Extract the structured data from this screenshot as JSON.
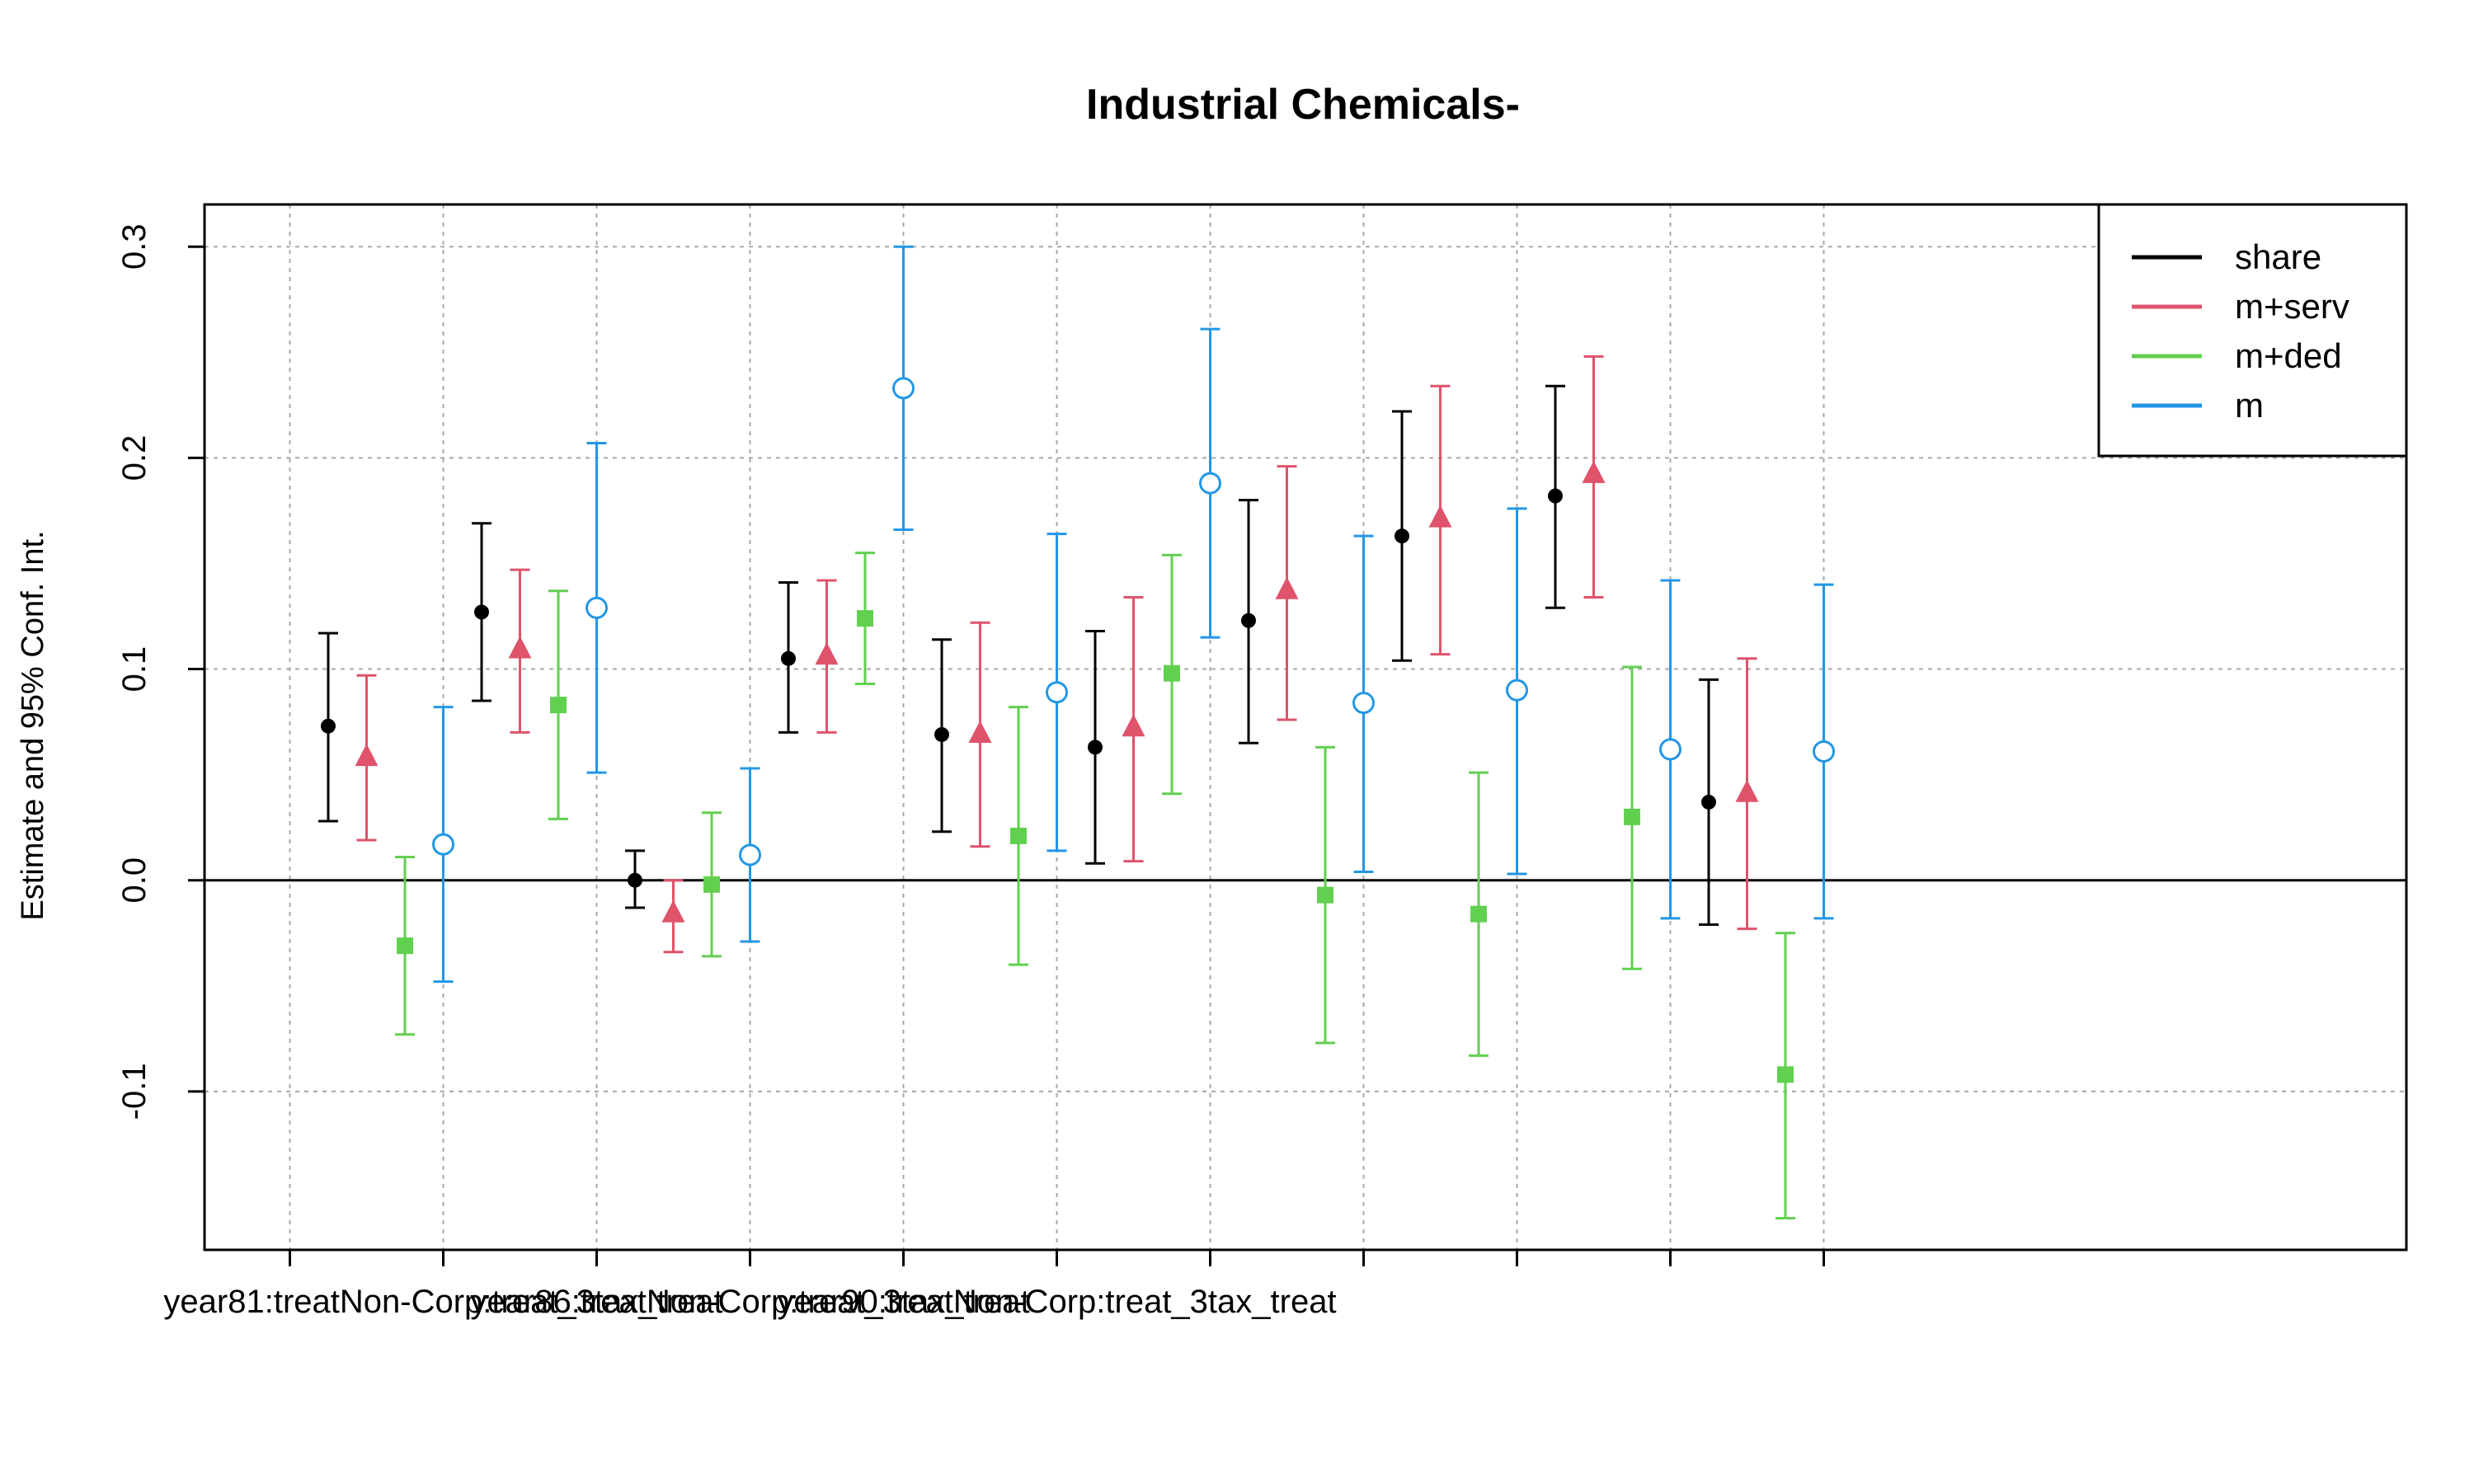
{
  "chart_data": {
    "type": "scatter",
    "title": "Industrial Chemicals-",
    "ylabel": "Estimate and 95% Conf. Int.",
    "xlabel": "",
    "ylim": [
      -0.175,
      0.32
    ],
    "yticks": [
      -0.1,
      0.0,
      0.1,
      0.2,
      0.3
    ],
    "ytick_labels": [
      "-0.1",
      "0.0",
      "0.1",
      "0.2",
      "0.3"
    ],
    "xtick_labels": [
      "year81:treatNon-Corp:treat_3tax_treat",
      "",
      "year86:treatNon-Corp:treat_3tax_treat",
      "",
      "year90:treatNon-Corp:treat_3tax_treat"
    ],
    "grid": true,
    "reference_line": 0.0,
    "legend_position": "top-right",
    "n_groups": 10,
    "series": [
      {
        "name": "share",
        "color": "#000000",
        "marker": "filled-circle",
        "estimates": [
          0.073,
          0.127,
          0.0,
          0.105,
          0.069,
          0.063,
          0.123,
          0.163,
          0.182,
          0.037
        ],
        "lower": [
          0.028,
          0.085,
          -0.013,
          0.07,
          0.023,
          0.008,
          0.065,
          0.104,
          0.129,
          -0.021
        ],
        "upper": [
          0.117,
          0.169,
          0.014,
          0.141,
          0.114,
          0.118,
          0.18,
          0.222,
          0.234,
          0.095
        ]
      },
      {
        "name": "m+serv",
        "color": "#DF536B",
        "marker": "filled-triangle",
        "estimates": [
          0.058,
          0.109,
          -0.016,
          0.106,
          0.069,
          0.072,
          0.137,
          0.171,
          0.192,
          0.041
        ],
        "lower": [
          0.019,
          0.07,
          -0.034,
          0.07,
          0.016,
          0.009,
          0.076,
          0.107,
          0.134,
          -0.023
        ],
        "upper": [
          0.097,
          0.147,
          0.0,
          0.142,
          0.122,
          0.134,
          0.196,
          0.234,
          0.248,
          0.105
        ]
      },
      {
        "name": "m+ded",
        "color": "#61D04F",
        "marker": "filled-square",
        "estimates": [
          -0.031,
          0.083,
          -0.002,
          0.124,
          0.021,
          0.098,
          -0.007,
          -0.016,
          0.03,
          -0.092
        ],
        "lower": [
          -0.073,
          0.029,
          -0.036,
          0.093,
          -0.04,
          0.041,
          -0.077,
          -0.083,
          -0.042,
          -0.16
        ],
        "upper": [
          0.011,
          0.137,
          0.032,
          0.155,
          0.082,
          0.154,
          0.063,
          0.051,
          0.101,
          -0.025
        ]
      },
      {
        "name": "m",
        "color": "#2297E6",
        "marker": "open-circle",
        "estimates": [
          0.017,
          0.129,
          0.012,
          0.233,
          0.089,
          0.188,
          0.084,
          0.09,
          0.062,
          0.061
        ],
        "lower": [
          -0.048,
          0.051,
          -0.029,
          0.166,
          0.014,
          0.115,
          0.004,
          0.003,
          -0.018,
          -0.018
        ],
        "upper": [
          0.082,
          0.207,
          0.053,
          0.3,
          0.164,
          0.261,
          0.163,
          0.176,
          0.142,
          0.14
        ]
      }
    ]
  }
}
